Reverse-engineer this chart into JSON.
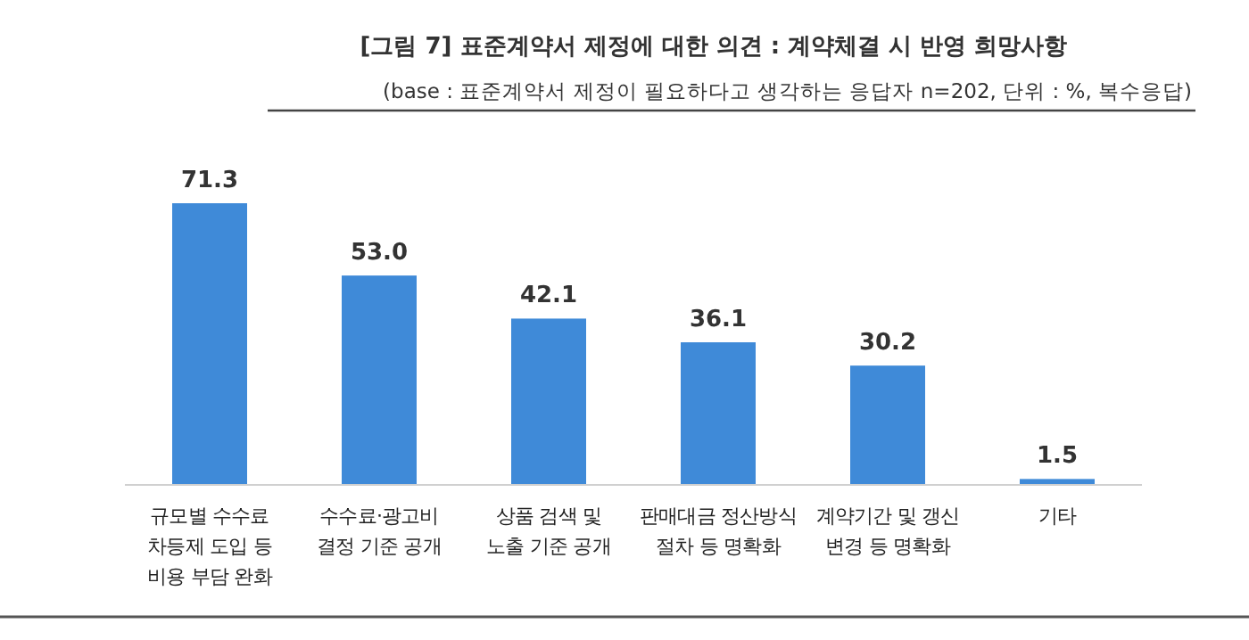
{
  "chart_data": {
    "type": "bar",
    "title": "[그림 7] 표준계약서 제정에 대한 의견 : 계약체결 시 반영 희망사항",
    "subtitle": "(base : 표준계약서 제정이 필요하다고 생각하는 응답자 n=202, 단위 : %, 복수응답)",
    "categories": [
      "규모별 수수료\n차등제 도입 등\n비용 부담 완화",
      "수수료·광고비\n결정 기준 공개",
      "상품 검색 및\n노출 기준 공개",
      "판매대금 정산방식\n절차 등 명확화",
      "계약기간 및 갱신\n변경 등 명확화",
      "기타"
    ],
    "values": [
      71.3,
      53.0,
      42.1,
      36.1,
      30.2,
      1.5
    ],
    "value_labels": [
      "71.3",
      "53.0",
      "42.1",
      "36.1",
      "30.2",
      "1.5"
    ],
    "color": "#3f8ad8"
  }
}
